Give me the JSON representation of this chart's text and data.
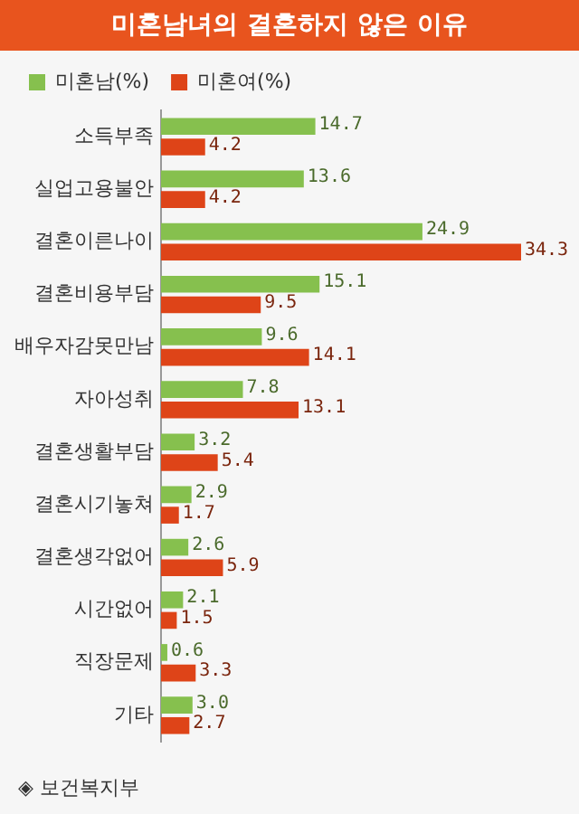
{
  "chart_data": {
    "type": "bar",
    "orientation": "horizontal",
    "title": "미혼남녀의 결혼하지 않은 이유",
    "categories": [
      "소득부족",
      "실업고용불안",
      "결혼이른나이",
      "결혼비용부담",
      "배우자감못만남",
      "자아성취",
      "결혼생활부담",
      "결혼시기놓쳐",
      "결혼생각없어",
      "시간없어",
      "직장문제",
      "기타"
    ],
    "series": [
      {
        "name": "미혼남(%)",
        "color": "#86c04e",
        "values": [
          14.7,
          13.6,
          24.9,
          15.1,
          9.6,
          7.8,
          3.2,
          2.9,
          2.6,
          2.1,
          0.6,
          3.0
        ],
        "value_labels": [
          "14.7",
          "13.6",
          "24.9",
          "15.1",
          "9.6",
          "7.8",
          "3.2",
          "2.9",
          "2.6",
          "2.1",
          "0.6",
          "3.0"
        ]
      },
      {
        "name": "미혼여(%)",
        "color": "#de4418",
        "values": [
          4.2,
          4.2,
          34.3,
          9.5,
          14.1,
          13.1,
          5.4,
          1.7,
          5.9,
          1.5,
          3.3,
          2.7
        ],
        "value_labels": [
          "4.2",
          "4.2",
          "34.3",
          "9.5",
          "14.1",
          "13.1",
          "5.4",
          "1.7",
          "5.9",
          "1.5",
          "3.3",
          "2.7"
        ]
      }
    ],
    "legend": "top left",
    "tick_labels": "y",
    "annotations": [
      "◈ 보건복지부"
    ]
  }
}
